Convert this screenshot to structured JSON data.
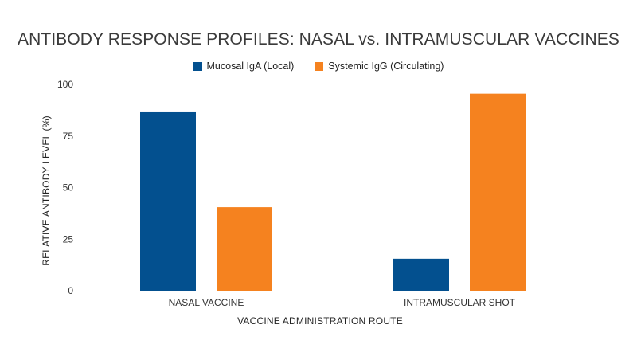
{
  "colors": {
    "iga": "#03508f",
    "igg": "#f5821f",
    "axis": "#9a9a9a"
  },
  "chart_data": {
    "type": "bar",
    "title": "ANTIBODY RESPONSE PROFILES: NASAL vs. INTRAMUSCULAR VACCINES",
    "xlabel": "VACCINE ADMINISTRATION ROUTE",
    "ylabel": "RELATIVE ANTIBODY LEVEL (%)",
    "categories": [
      "NASAL VACCINE",
      "INTRAMUSCULAR SHOT"
    ],
    "series": [
      {
        "name": "Mucosal IgA (Local)",
        "values": [
          86.5,
          15.5
        ]
      },
      {
        "name": "Systemic IgG (Circulating)",
        "values": [
          40.5,
          95.5
        ]
      }
    ],
    "ylim": [
      0,
      100
    ],
    "yticks": [
      0,
      25,
      50,
      75,
      100
    ],
    "grid": false,
    "legend": "top-center"
  }
}
